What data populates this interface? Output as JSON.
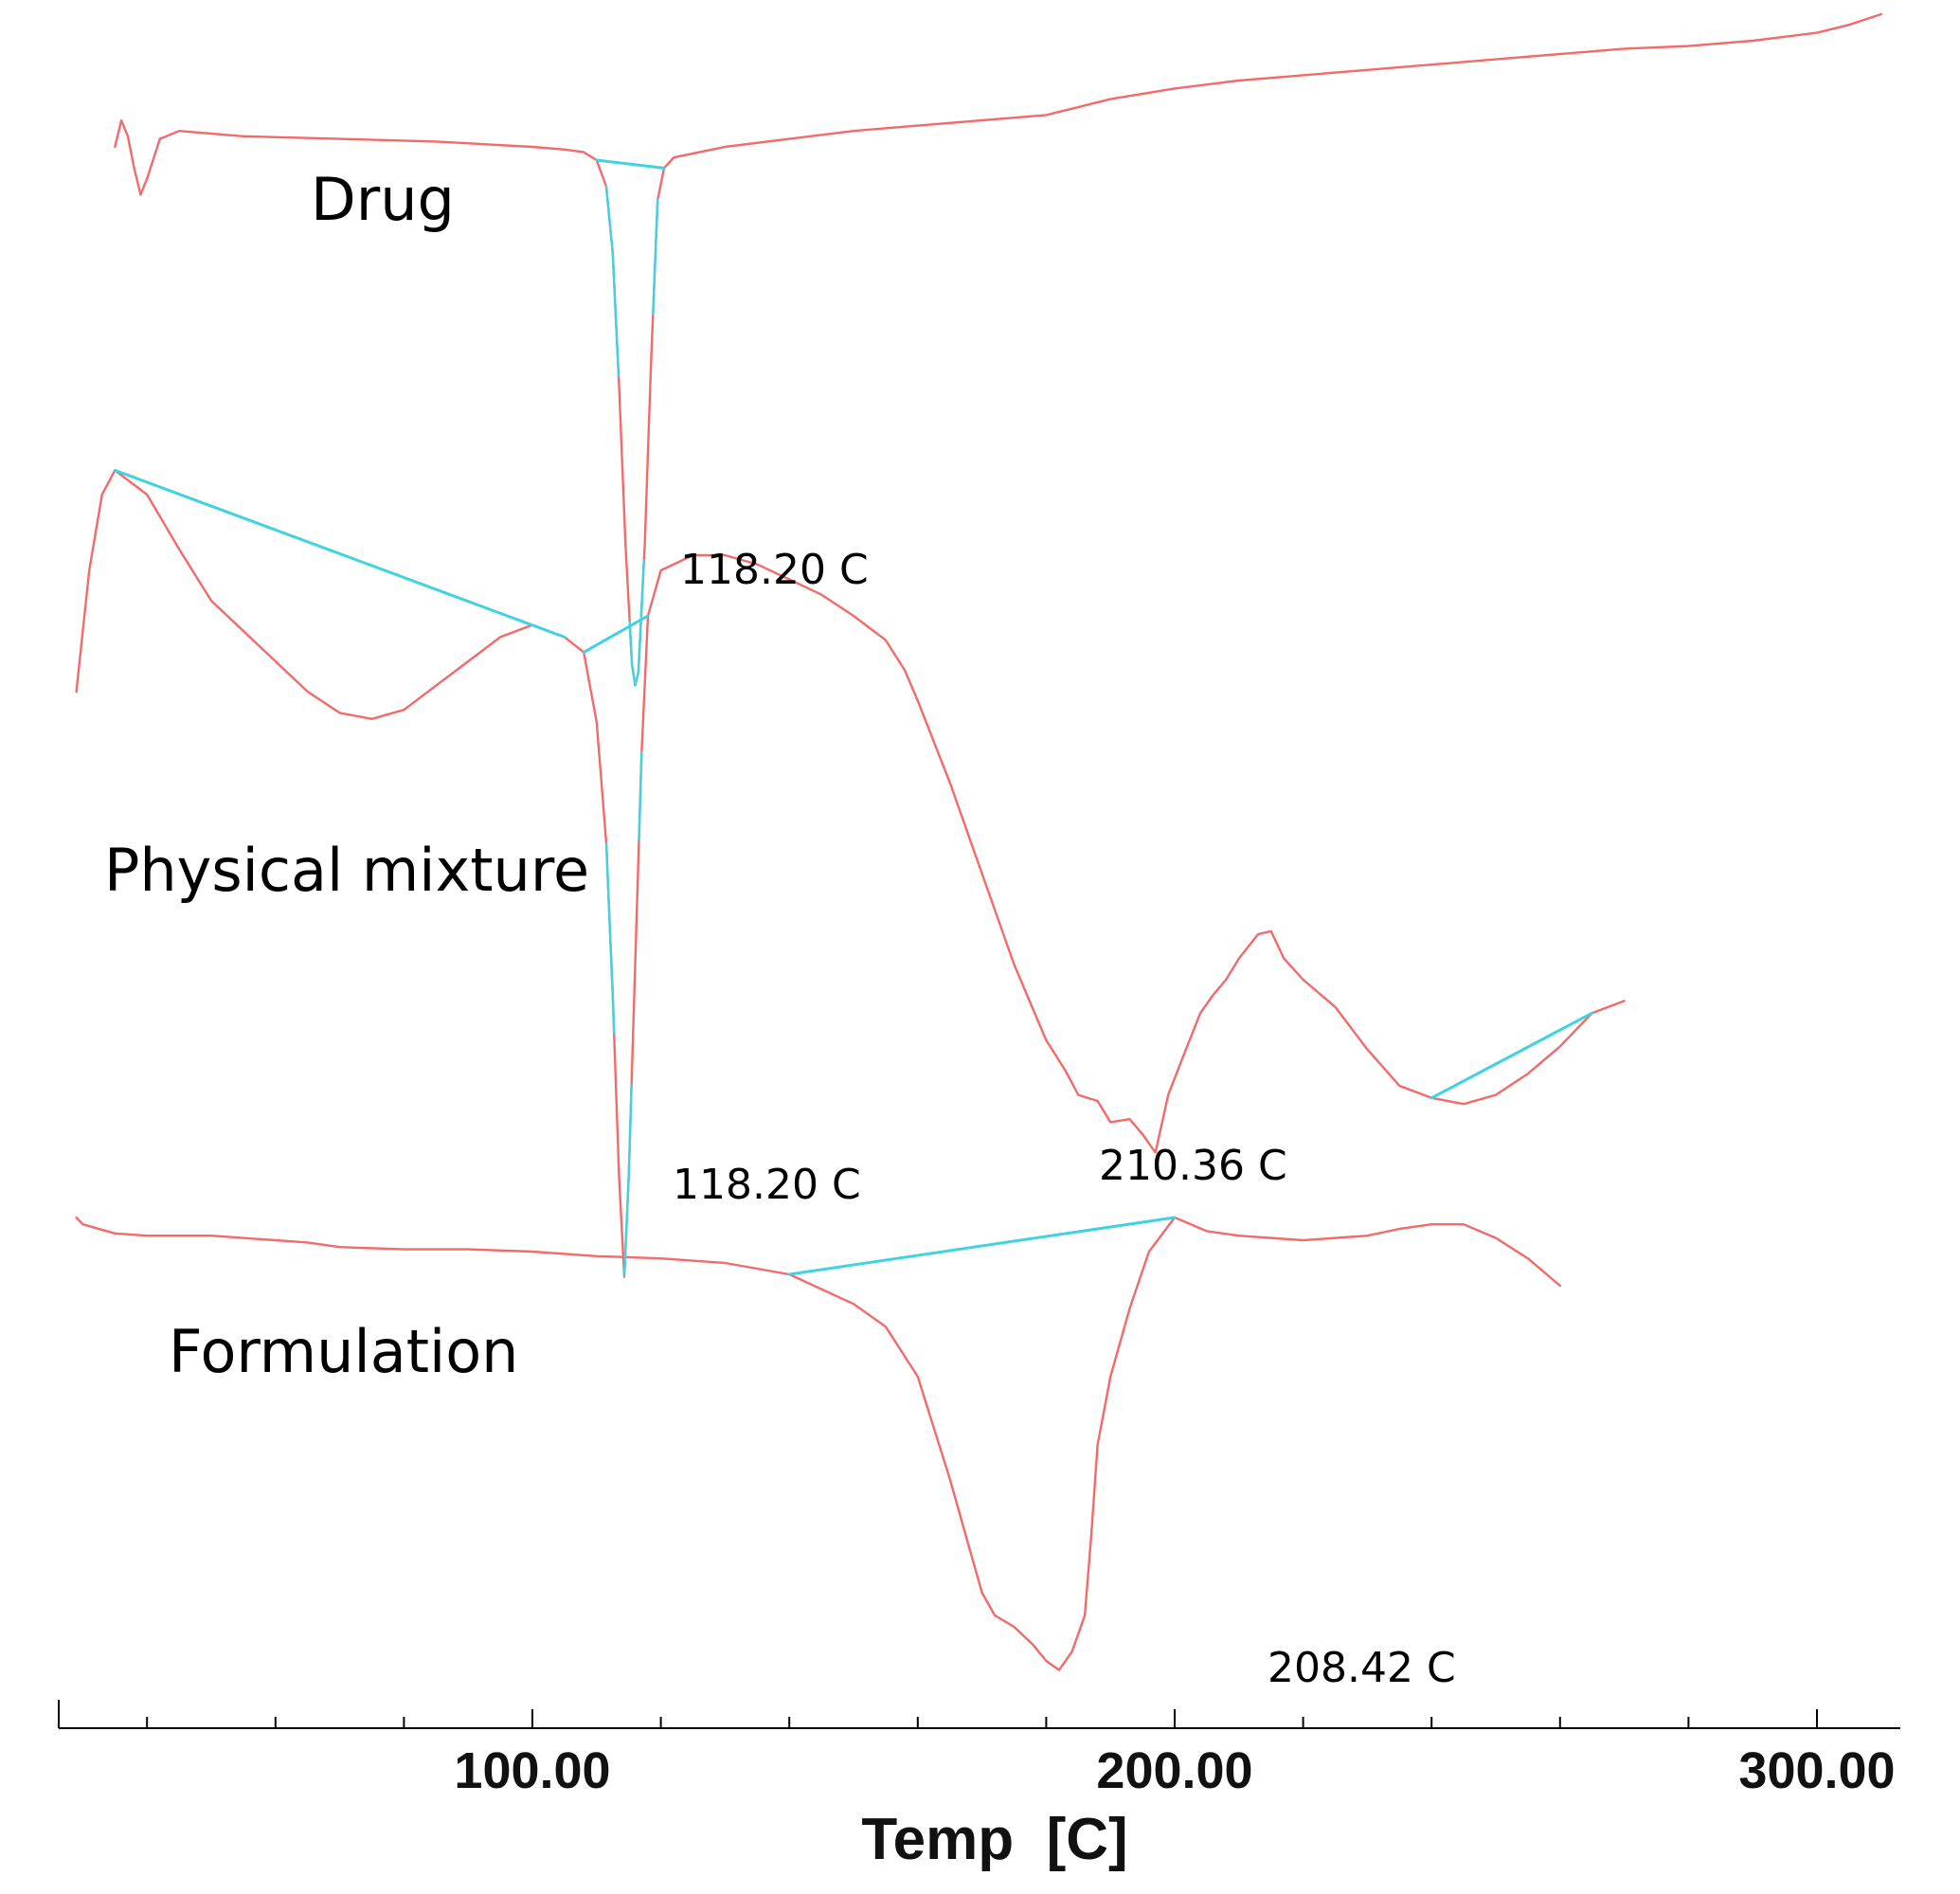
{
  "chart_data": {
    "type": "line",
    "title": "",
    "xlabel": "Temp  [C]",
    "ylabel": "",
    "xlim": [
      26,
      314
    ],
    "x_ticks": [
      {
        "value": 100,
        "label": "100.00"
      },
      {
        "value": 200,
        "label": "200.00"
      },
      {
        "value": 300,
        "label": "300.00"
      }
    ],
    "x_minor_ticks": [
      40,
      60,
      80,
      120,
      140,
      160,
      180,
      220,
      240,
      260,
      280
    ],
    "grid": false,
    "legend": "none",
    "colors": {
      "curve": "#f26a6a",
      "baseline": "#3fd3e0",
      "axis": "#000000"
    },
    "series": [
      {
        "name": "Drug",
        "points": [
          [
            35,
            0.0
          ],
          [
            36,
            1.0
          ],
          [
            37,
            0.4
          ],
          [
            38,
            -0.8
          ],
          [
            39,
            -1.8
          ],
          [
            40,
            -1.2
          ],
          [
            42,
            0.3
          ],
          [
            45,
            0.6
          ],
          [
            55,
            0.4
          ],
          [
            70,
            0.3
          ],
          [
            85,
            0.2
          ],
          [
            100,
            0.0
          ],
          [
            105,
            -0.1
          ],
          [
            108,
            -0.2
          ],
          [
            110,
            -0.5
          ],
          [
            111.5,
            -1.5
          ],
          [
            112.5,
            -4.0
          ],
          [
            113.5,
            -9.0
          ],
          [
            114.5,
            -15.0
          ],
          [
            115.5,
            -19.5
          ],
          [
            116,
            -20.3
          ],
          [
            116.5,
            -19.8
          ],
          [
            117.5,
            -15.0
          ],
          [
            118.5,
            -8.0
          ],
          [
            119.5,
            -2.0
          ],
          [
            120.5,
            -0.8
          ],
          [
            122,
            -0.4
          ],
          [
            130,
            0.0
          ],
          [
            140,
            0.3
          ],
          [
            150,
            0.6
          ],
          [
            160,
            0.8
          ],
          [
            170,
            1.0
          ],
          [
            180,
            1.2
          ],
          [
            190,
            1.8
          ],
          [
            200,
            2.2
          ],
          [
            210,
            2.5
          ],
          [
            220,
            2.7
          ],
          [
            230,
            2.9
          ],
          [
            240,
            3.1
          ],
          [
            250,
            3.3
          ],
          [
            260,
            3.5
          ],
          [
            270,
            3.7
          ],
          [
            280,
            3.8
          ],
          [
            290,
            4.0
          ],
          [
            300,
            4.3
          ],
          [
            305,
            4.6
          ],
          [
            310,
            5.0
          ]
        ]
      },
      {
        "name": "Physical mixture",
        "points": [
          [
            29,
            0.0
          ],
          [
            31,
            4.0
          ],
          [
            33,
            6.5
          ],
          [
            35,
            7.3
          ],
          [
            40,
            6.5
          ],
          [
            45,
            4.7
          ],
          [
            50,
            3.0
          ],
          [
            55,
            2.0
          ],
          [
            60,
            1.0
          ],
          [
            65,
            0.0
          ],
          [
            70,
            -0.7
          ],
          [
            75,
            -0.9
          ],
          [
            80,
            -0.6
          ],
          [
            85,
            0.2
          ],
          [
            90,
            1.0
          ],
          [
            95,
            1.8
          ],
          [
            100,
            2.2
          ],
          [
            105,
            1.8
          ],
          [
            108,
            1.3
          ],
          [
            110,
            -1.0
          ],
          [
            111.5,
            -5.0
          ],
          [
            112.5,
            -10.0
          ],
          [
            113.5,
            -16.0
          ],
          [
            114.3,
            -19.3
          ],
          [
            115,
            -16.0
          ],
          [
            116,
            -9.0
          ],
          [
            117,
            -2.0
          ],
          [
            118,
            2.5
          ],
          [
            120,
            4.0
          ],
          [
            125,
            4.5
          ],
          [
            130,
            4.5
          ],
          [
            135,
            4.2
          ],
          [
            140,
            3.7
          ],
          [
            145,
            3.2
          ],
          [
            150,
            2.5
          ],
          [
            155,
            1.7
          ],
          [
            158,
            0.7
          ],
          [
            160,
            -0.3
          ],
          [
            165,
            -3.0
          ],
          [
            170,
            -6.0
          ],
          [
            175,
            -9.0
          ],
          [
            180,
            -11.5
          ],
          [
            183,
            -12.5
          ],
          [
            185,
            -13.3
          ],
          [
            188,
            -13.5
          ],
          [
            190,
            -14.2
          ],
          [
            193,
            -14.1
          ],
          [
            195,
            -14.6
          ],
          [
            197,
            -15.2
          ],
          [
            199,
            -13.3
          ],
          [
            201,
            -12.2
          ],
          [
            204,
            -10.6
          ],
          [
            206,
            -10.0
          ],
          [
            208,
            -9.5
          ],
          [
            210,
            -8.8
          ],
          [
            213,
            -8.0
          ],
          [
            215,
            -7.9
          ],
          [
            217,
            -8.8
          ],
          [
            220,
            -9.5
          ],
          [
            225,
            -10.4
          ],
          [
            230,
            -11.8
          ],
          [
            235,
            -13.0
          ],
          [
            240,
            -13.4
          ],
          [
            245,
            -13.6
          ],
          [
            250,
            -13.3
          ],
          [
            255,
            -12.6
          ],
          [
            260,
            -11.7
          ],
          [
            265,
            -10.6
          ],
          [
            270,
            -10.2
          ]
        ]
      },
      {
        "name": "Formulation",
        "points": [
          [
            29,
            0.0
          ],
          [
            30,
            -0.3
          ],
          [
            35,
            -0.7
          ],
          [
            40,
            -0.8
          ],
          [
            50,
            -0.8
          ],
          [
            60,
            -1.0
          ],
          [
            65,
            -1.1
          ],
          [
            70,
            -1.3
          ],
          [
            80,
            -1.4
          ],
          [
            90,
            -1.4
          ],
          [
            100,
            -1.5
          ],
          [
            110,
            -1.7
          ],
          [
            120,
            -1.8
          ],
          [
            130,
            -2.0
          ],
          [
            140,
            -2.5
          ],
          [
            150,
            -3.8
          ],
          [
            155,
            -4.8
          ],
          [
            160,
            -7.0
          ],
          [
            165,
            -11.5
          ],
          [
            168,
            -14.5
          ],
          [
            170,
            -16.5
          ],
          [
            172,
            -17.5
          ],
          [
            175,
            -18.0
          ],
          [
            178,
            -18.8
          ],
          [
            180,
            -19.5
          ],
          [
            182,
            -19.9
          ],
          [
            184,
            -19.1
          ],
          [
            186,
            -17.5
          ],
          [
            187,
            -14.0
          ],
          [
            188,
            -10.0
          ],
          [
            190,
            -7.0
          ],
          [
            193,
            -4.0
          ],
          [
            196,
            -1.5
          ],
          [
            200,
            0.0
          ],
          [
            205,
            -0.6
          ],
          [
            210,
            -0.8
          ],
          [
            220,
            -1.0
          ],
          [
            230,
            -0.8
          ],
          [
            235,
            -0.5
          ],
          [
            240,
            -0.3
          ],
          [
            245,
            -0.3
          ],
          [
            250,
            -0.9
          ],
          [
            255,
            -1.8
          ],
          [
            260,
            -3.0
          ]
        ]
      }
    ],
    "peak_labels": [
      {
        "series": "Drug",
        "x": 116,
        "text": "118.20 C"
      },
      {
        "series": "Physical mixture",
        "x": 114.3,
        "text": "118.20 C"
      },
      {
        "series": "Physical mixture",
        "x": 197,
        "text": "210.36 C"
      },
      {
        "series": "Formulation",
        "x": 182,
        "text": "208.42 C"
      }
    ]
  }
}
